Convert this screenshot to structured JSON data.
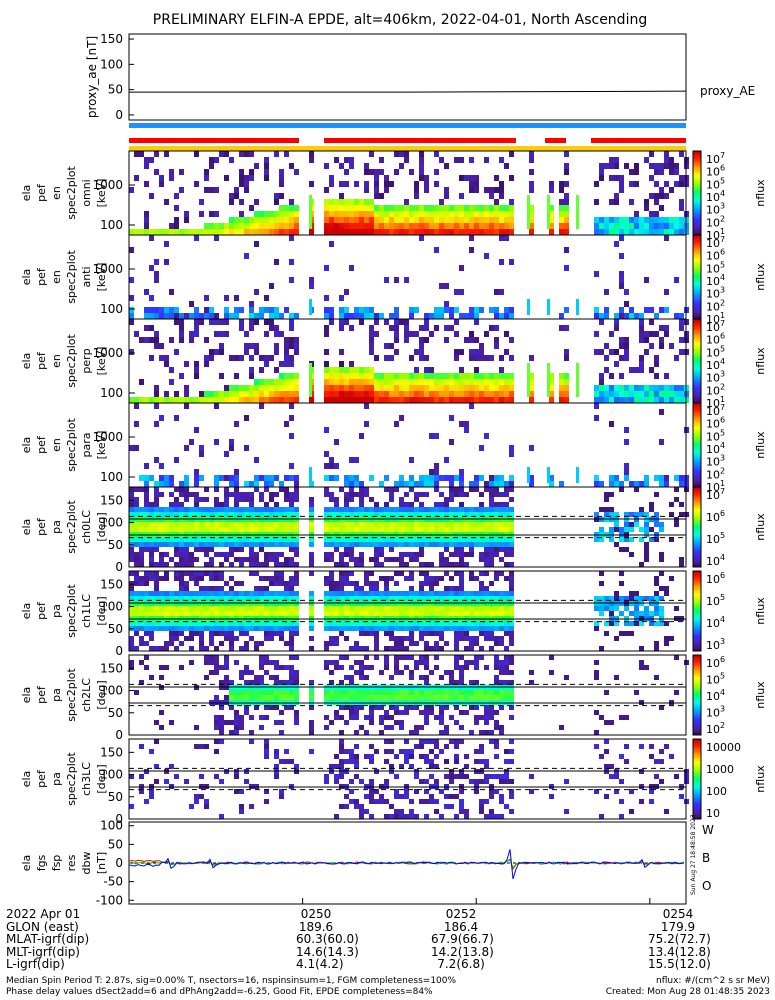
{
  "title": "PRELIMINARY ELFIN-A EPDE, alt=406km, 2022-04-01, North Ascending",
  "chart_data": [
    {
      "type": "line",
      "ylabel": "proxy_ae [nT]",
      "yticks": [
        "150",
        "100",
        "50",
        "0"
      ],
      "ylim": [
        -10,
        160
      ],
      "series": [
        {
          "name": "proxy_AE",
          "x": [
            "0248",
            "0251:10",
            "0254:25"
          ],
          "values": [
            45,
            45,
            47
          ]
        }
      ]
    },
    {
      "type": "heatmap",
      "ylabel": [
        "ela",
        "pef",
        "en",
        "spec2plot",
        "omni",
        "[keV]"
      ],
      "yticks": [
        "1000",
        "100"
      ],
      "colorbar_ticks": [
        "10^7",
        "10^6",
        "10^5",
        "10^4",
        "10^3",
        "10^2",
        "10^1"
      ],
      "zlabel": "nflux"
    },
    {
      "type": "heatmap",
      "ylabel": [
        "ela",
        "pef",
        "en",
        "spec2plot",
        "anti",
        "[keV]"
      ],
      "yticks": [
        "1000",
        "100"
      ],
      "colorbar_ticks": [
        "10^7",
        "10^6",
        "10^5",
        "10^4",
        "10^3",
        "10^2",
        "10^1"
      ],
      "zlabel": "nflux"
    },
    {
      "type": "heatmap",
      "ylabel": [
        "ela",
        "pef",
        "en",
        "spec2plot",
        "perp",
        "[keV]"
      ],
      "yticks": [
        "1000",
        "100"
      ],
      "colorbar_ticks": [
        "10^7",
        "10^6",
        "10^5",
        "10^4",
        "10^3",
        "10^2",
        "10^1"
      ],
      "zlabel": "nflux"
    },
    {
      "type": "heatmap",
      "ylabel": [
        "ela",
        "pef",
        "en",
        "spec2plot",
        "para",
        "[keV]"
      ],
      "yticks": [
        "1000",
        "100"
      ],
      "colorbar_ticks": [
        "10^7",
        "10^6",
        "10^5",
        "10^4",
        "10^3",
        "10^2",
        "10^1"
      ],
      "zlabel": "nflux"
    },
    {
      "type": "heatmap",
      "ylabel": [
        "ela",
        "pef",
        "pa",
        "spec2plot",
        "ch0LC",
        "[deg]"
      ],
      "yticks": [
        "150",
        "100",
        "50",
        "0"
      ],
      "colorbar_ticks": [
        "10^7",
        "10^6",
        "10^5",
        "10^4"
      ],
      "zlabel": "nflux"
    },
    {
      "type": "heatmap",
      "ylabel": [
        "ela",
        "pef",
        "pa",
        "spec2plot",
        "ch1LC",
        "[deg]"
      ],
      "yticks": [
        "150",
        "100",
        "50",
        "0"
      ],
      "colorbar_ticks": [
        "10^6",
        "10^5",
        "10^4",
        "10^3"
      ],
      "zlabel": "nflux"
    },
    {
      "type": "heatmap",
      "ylabel": [
        "ela",
        "pef",
        "pa",
        "spec2plot",
        "ch2LC",
        "[deg]"
      ],
      "yticks": [
        "150",
        "100",
        "50",
        "0"
      ],
      "colorbar_ticks": [
        "10^6",
        "10^5",
        "10^4",
        "10^3",
        "10^2"
      ],
      "zlabel": "nflux"
    },
    {
      "type": "heatmap",
      "ylabel": [
        "ela",
        "pef",
        "pa",
        "spec2plot",
        "ch3LC",
        "[deg]"
      ],
      "yticks": [
        "150",
        "100",
        "50",
        "0"
      ],
      "colorbar_ticks": [
        "10000",
        "1000",
        "100",
        "10"
      ],
      "zlabel": "nflux"
    },
    {
      "type": "line",
      "ylabel": [
        "ela",
        "fgs",
        "fsp",
        "res",
        "dbw",
        "[nT]"
      ],
      "yticks": [
        "100",
        "50",
        "0",
        "-50",
        "-100"
      ],
      "ylim": [
        -110,
        110
      ],
      "series": [
        {
          "name": "W",
          "color": "#ff0000"
        },
        {
          "name": "B",
          "color": "#00cc00"
        },
        {
          "name": "O",
          "color": "#0000ff"
        }
      ]
    }
  ],
  "side_label": "Sun Aug 27 18:48:58 2023",
  "footer": {
    "rows": [
      {
        "label": "2022 Apr 01",
        "v1": "0250",
        "v2": "0252",
        "v3": "0254"
      },
      {
        "label": "GLON (east)",
        "v1": "189.6",
        "v2": "186.4",
        "v3": "179.9"
      },
      {
        "label": "MLAT-igrf(dip)",
        "v1": "60.3(60.0)",
        "v2": "67.9(66.7)",
        "v3": "75.2(72.7)"
      },
      {
        "label": "MLT-igrf(dip)",
        "v1": "14.6(14.3)",
        "v2": "14.2(13.8)",
        "v3": "13.4(12.8)"
      },
      {
        "label": "L-igrf(dip)",
        "v1": "4.1(4.2)",
        "v2": "7.2(6.8)",
        "v3": "15.5(12.0)"
      }
    ],
    "note_left_1": "Median Spin Period T: 2.87s, sig=0.00% T, nsectors=16, nspinsinsum=1, FGM completeness=100%",
    "note_left_2": "Phase delay values dSect2add=6 and dPhAng2add=-6.25, Good Fit, EPDE completeness=84%",
    "note_right_1": "nflux: #/(cm^2 s sr MeV)",
    "note_right_2": "Created: Mon Aug 28 01:48:35 2023"
  }
}
